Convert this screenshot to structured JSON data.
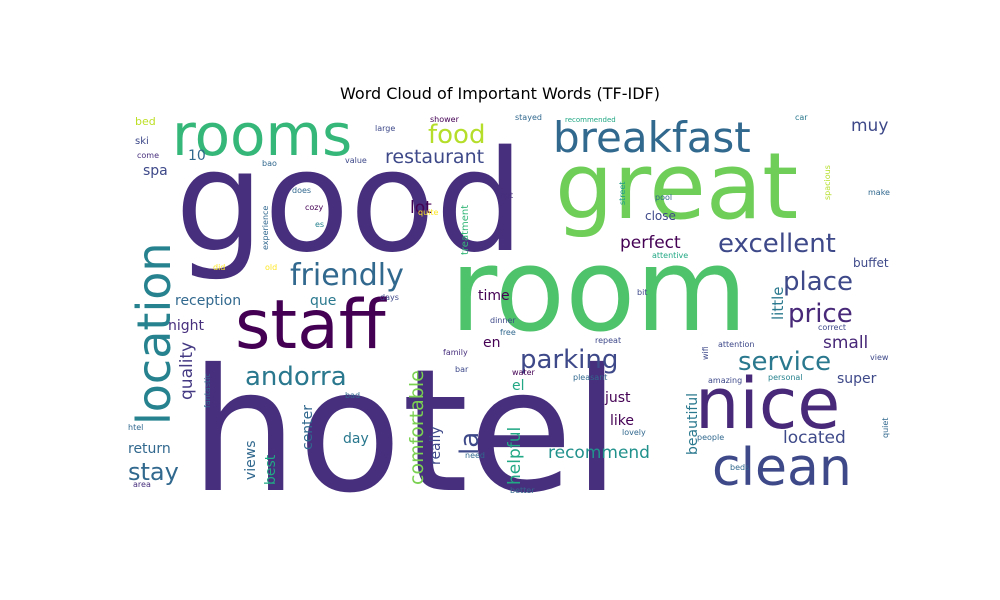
{
  "title": "Word Cloud of Important Words (TF-IDF)",
  "chart_data": {
    "type": "wordcloud",
    "title": "Word Cloud of Important Words (TF-IDF)",
    "grid": false,
    "legend": "none",
    "words": [
      {
        "text": "hotel",
        "color": "#472f7d"
      },
      {
        "text": "good",
        "color": "#472f7d"
      },
      {
        "text": "room",
        "color": "#4ec36b"
      },
      {
        "text": "great",
        "color": "#6ece58"
      },
      {
        "text": "staff",
        "color": "#440154"
      },
      {
        "text": "rooms",
        "color": "#35b779"
      },
      {
        "text": "breakfast",
        "color": "#31688e"
      },
      {
        "text": "nice",
        "color": "#482878"
      },
      {
        "text": "clean",
        "color": "#3e4989"
      },
      {
        "text": "location",
        "color": "#26828e"
      },
      {
        "text": "friendly",
        "color": "#31688e"
      },
      {
        "text": "excellent",
        "color": "#3e4989"
      },
      {
        "text": "parking",
        "color": "#3e4989"
      },
      {
        "text": "service",
        "color": "#2a788e"
      },
      {
        "text": "place",
        "color": "#3e4989"
      },
      {
        "text": "price",
        "color": "#482878"
      },
      {
        "text": "andorra",
        "color": "#2a788e"
      },
      {
        "text": "food",
        "color": "#b5de2b"
      },
      {
        "text": "restaurant",
        "color": "#3e4989"
      },
      {
        "text": "stay",
        "color": "#31688e"
      },
      {
        "text": "la",
        "color": "#3e4989"
      },
      {
        "text": "perfect",
        "color": "#440154"
      },
      {
        "text": "comfortable",
        "color": "#7ad151"
      },
      {
        "text": "quality",
        "color": "#443983"
      },
      {
        "text": "located",
        "color": "#3e4989"
      },
      {
        "text": "recommend",
        "color": "#21918c"
      },
      {
        "text": "small",
        "color": "#482878"
      },
      {
        "text": "muy",
        "color": "#3e4989"
      },
      {
        "text": "super",
        "color": "#3e4989"
      },
      {
        "text": "little",
        "color": "#2a788e"
      },
      {
        "text": "helpful",
        "color": "#22a884"
      },
      {
        "text": "beautiful",
        "color": "#2a788e"
      },
      {
        "text": "center",
        "color": "#31688e"
      },
      {
        "text": "views",
        "color": "#31688e"
      },
      {
        "text": "best",
        "color": "#22a884"
      },
      {
        "text": "really",
        "color": "#3e4989"
      },
      {
        "text": "return",
        "color": "#31688e"
      },
      {
        "text": "reception",
        "color": "#31688e"
      },
      {
        "text": "night",
        "color": "#472f7d"
      },
      {
        "text": "que",
        "color": "#2a788e"
      },
      {
        "text": "lot",
        "color": "#440154"
      },
      {
        "text": "time",
        "color": "#440154"
      },
      {
        "text": "en",
        "color": "#440154"
      },
      {
        "text": "el",
        "color": "#22a884"
      },
      {
        "text": "day",
        "color": "#2a788e"
      },
      {
        "text": "just",
        "color": "#440154"
      },
      {
        "text": "like",
        "color": "#440154"
      },
      {
        "text": "buffet",
        "color": "#3e4989"
      },
      {
        "text": "close",
        "color": "#3e4989"
      },
      {
        "text": "spa",
        "color": "#3e4989"
      },
      {
        "text": "10",
        "color": "#31688e"
      },
      {
        "text": "treatment",
        "color": "#35b779"
      },
      {
        "text": "bed",
        "color": "#bddf26"
      },
      {
        "text": "ski",
        "color": "#3e4989"
      },
      {
        "text": "come",
        "color": "#472f7d"
      },
      {
        "text": "bao",
        "color": "#31688e"
      },
      {
        "text": "does",
        "color": "#31688e"
      },
      {
        "text": "cozy",
        "color": "#440154"
      },
      {
        "text": "es",
        "color": "#26828e"
      },
      {
        "text": "value",
        "color": "#3e4989"
      },
      {
        "text": "large",
        "color": "#3e4989"
      },
      {
        "text": "shower",
        "color": "#440154"
      },
      {
        "text": "stayed",
        "color": "#31688e"
      },
      {
        "text": "recommended",
        "color": "#22a884"
      },
      {
        "text": "car",
        "color": "#2a788e"
      },
      {
        "text": "hot",
        "color": "#472f7d"
      },
      {
        "text": "quite",
        "color": "#fde725"
      },
      {
        "text": "experience",
        "color": "#31688e"
      },
      {
        "text": "did",
        "color": "#fde725"
      },
      {
        "text": "old",
        "color": "#fde725"
      },
      {
        "text": "street",
        "color": "#1f9e89"
      },
      {
        "text": "pool",
        "color": "#31688e"
      },
      {
        "text": "spacious",
        "color": "#b5de2b"
      },
      {
        "text": "make",
        "color": "#31688e"
      },
      {
        "text": "attentive",
        "color": "#22a884"
      },
      {
        "text": "bit",
        "color": "#3e4989"
      },
      {
        "text": "days",
        "color": "#3e4989"
      },
      {
        "text": "dinner",
        "color": "#3e4989"
      },
      {
        "text": "correct",
        "color": "#3e4989"
      },
      {
        "text": "repeat",
        "color": "#3e4989"
      },
      {
        "text": "family",
        "color": "#472f7d"
      },
      {
        "text": "wifi",
        "color": "#3e4989"
      },
      {
        "text": "attention",
        "color": "#3e4989"
      },
      {
        "text": "view",
        "color": "#3e4989"
      },
      {
        "text": "bar",
        "color": "#3e4989"
      },
      {
        "text": "water",
        "color": "#440154"
      },
      {
        "text": "pleasant",
        "color": "#31688e"
      },
      {
        "text": "amazing",
        "color": "#3e4989"
      },
      {
        "text": "personal",
        "color": "#26828e"
      },
      {
        "text": "fantastic",
        "color": "#31688e"
      },
      {
        "text": "htel",
        "color": "#31688e"
      },
      {
        "text": "bad",
        "color": "#31688e"
      },
      {
        "text": "need",
        "color": "#31688e"
      },
      {
        "text": "lovely",
        "color": "#31688e"
      },
      {
        "text": "people",
        "color": "#31688e"
      },
      {
        "text": "quiet",
        "color": "#31688e"
      },
      {
        "text": "beds",
        "color": "#31688e"
      },
      {
        "text": "area",
        "color": "#472f7d"
      },
      {
        "text": "better",
        "color": "#31688e"
      },
      {
        "text": "free",
        "color": "#31688e"
      }
    ]
  }
}
